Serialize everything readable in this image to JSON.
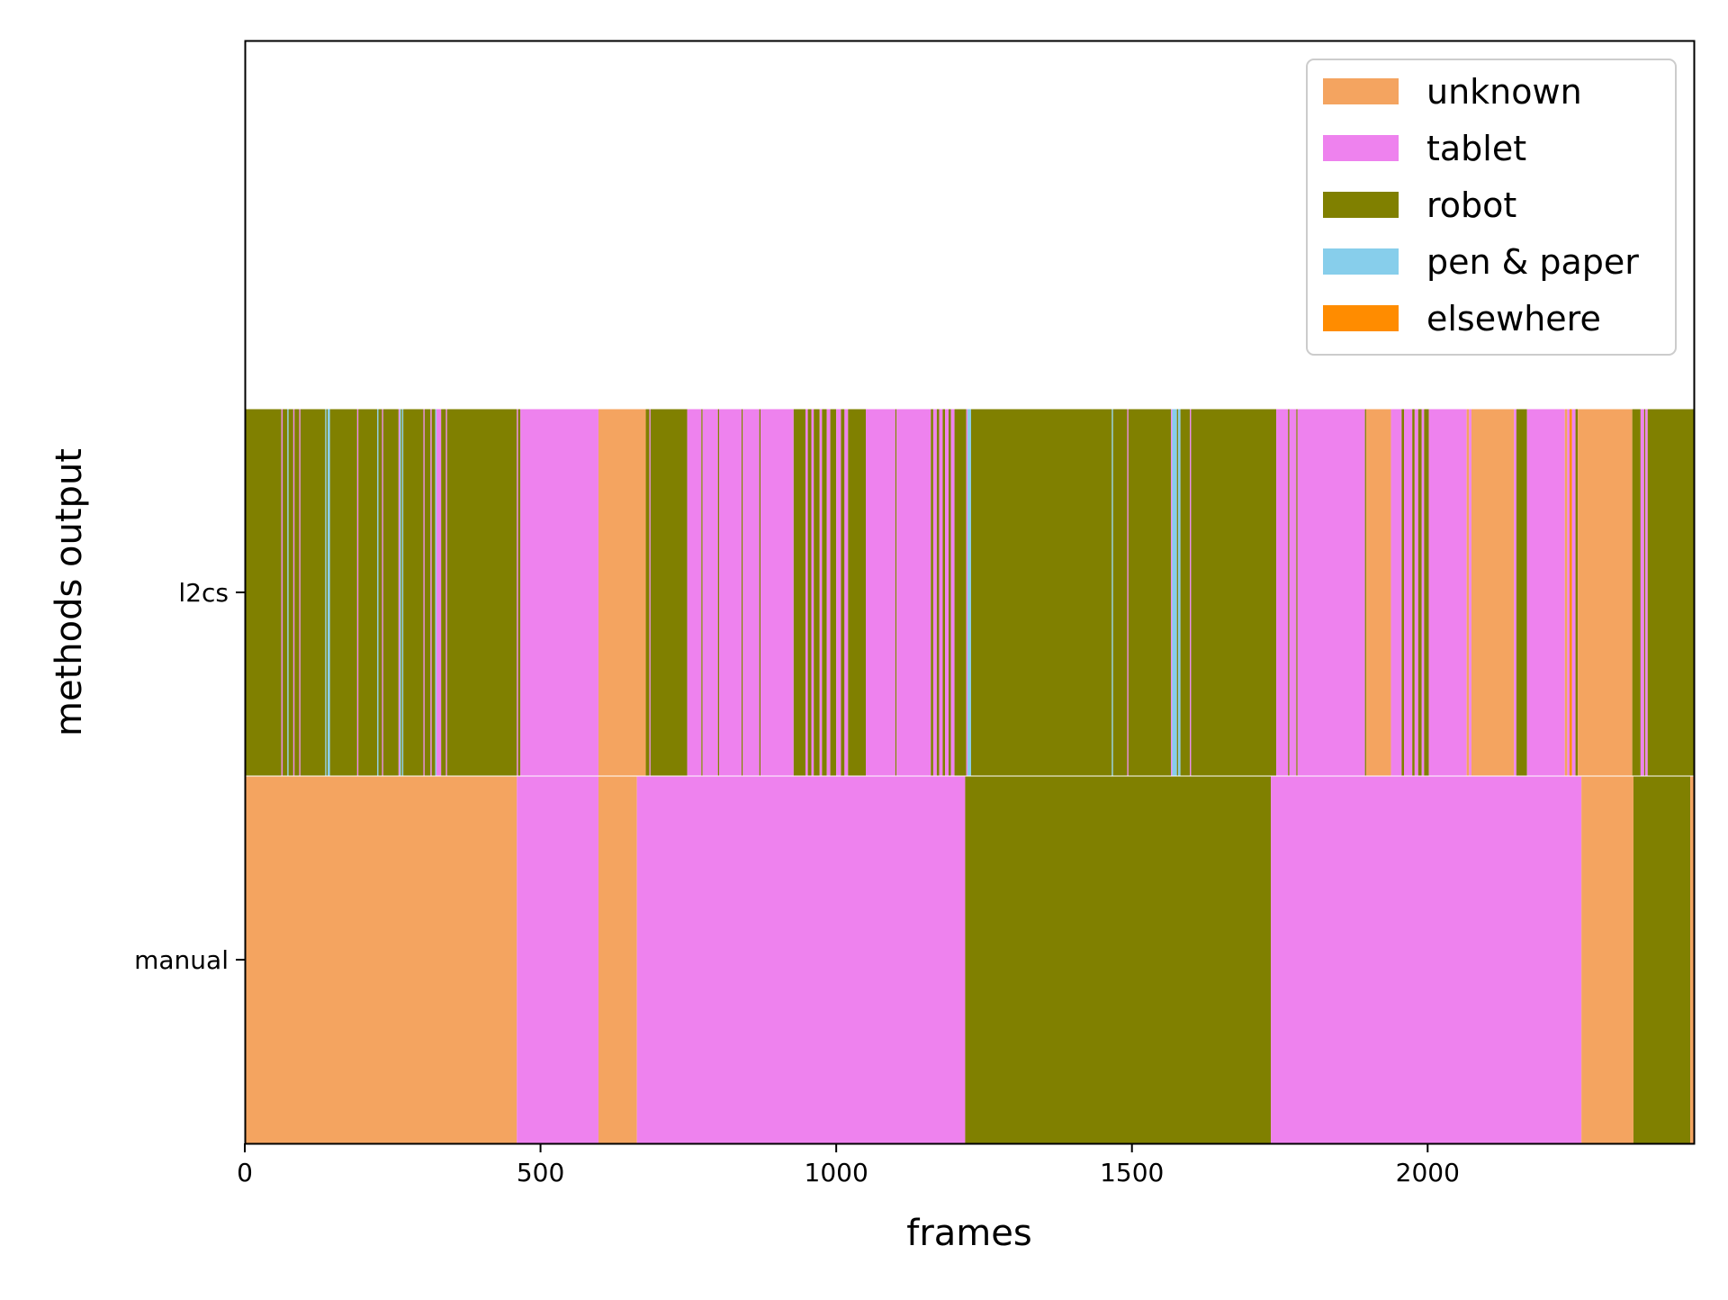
{
  "chart_data": {
    "type": "bar",
    "orientation": "horizontal-stacked-timeline",
    "xlabel": "frames",
    "ylabel": "methods output",
    "xlim": [
      0,
      2450
    ],
    "xticks": [
      0,
      500,
      1000,
      1500,
      2000
    ],
    "rows": [
      "manual",
      "l2cs"
    ],
    "grid": false,
    "legend_position": "top-right",
    "categories": [
      {
        "name": "unknown",
        "color": "#F4A460"
      },
      {
        "name": "tablet",
        "color": "#EE82EE"
      },
      {
        "name": "robot",
        "color": "#808000"
      },
      {
        "name": "pen & paper",
        "color": "#87CEEB"
      },
      {
        "name": "elsewhere",
        "color": "#FF8C00"
      }
    ],
    "series": [
      {
        "name": "manual",
        "segments": [
          {
            "start": 0,
            "end": 460,
            "label": "unknown"
          },
          {
            "start": 460,
            "end": 598,
            "label": "tablet"
          },
          {
            "start": 598,
            "end": 663,
            "label": "unknown"
          },
          {
            "start": 663,
            "end": 1218,
            "label": "tablet"
          },
          {
            "start": 1218,
            "end": 1735,
            "label": "robot"
          },
          {
            "start": 1735,
            "end": 2260,
            "label": "tablet"
          },
          {
            "start": 2260,
            "end": 2348,
            "label": "unknown"
          },
          {
            "start": 2348,
            "end": 2444,
            "label": "robot"
          },
          {
            "start": 2444,
            "end": 2450,
            "label": "unknown"
          }
        ]
      },
      {
        "name": "l2cs",
        "segments": [
          {
            "start": 0,
            "end": 62,
            "label": "robot"
          },
          {
            "start": 62,
            "end": 64,
            "label": "tablet"
          },
          {
            "start": 64,
            "end": 72,
            "label": "robot"
          },
          {
            "start": 72,
            "end": 74,
            "label": "pen & paper"
          },
          {
            "start": 74,
            "end": 82,
            "label": "robot"
          },
          {
            "start": 82,
            "end": 84,
            "label": "tablet"
          },
          {
            "start": 84,
            "end": 92,
            "label": "robot"
          },
          {
            "start": 92,
            "end": 94,
            "label": "tablet"
          },
          {
            "start": 94,
            "end": 136,
            "label": "robot"
          },
          {
            "start": 136,
            "end": 138,
            "label": "pen & paper"
          },
          {
            "start": 138,
            "end": 140,
            "label": "robot"
          },
          {
            "start": 140,
            "end": 144,
            "label": "pen & paper"
          },
          {
            "start": 144,
            "end": 190,
            "label": "robot"
          },
          {
            "start": 190,
            "end": 192,
            "label": "tablet"
          },
          {
            "start": 192,
            "end": 224,
            "label": "robot"
          },
          {
            "start": 224,
            "end": 226,
            "label": "pen & paper"
          },
          {
            "start": 226,
            "end": 232,
            "label": "robot"
          },
          {
            "start": 232,
            "end": 234,
            "label": "tablet"
          },
          {
            "start": 234,
            "end": 260,
            "label": "robot"
          },
          {
            "start": 260,
            "end": 262,
            "label": "tablet"
          },
          {
            "start": 262,
            "end": 264,
            "label": "pen & paper"
          },
          {
            "start": 264,
            "end": 266,
            "label": "robot"
          },
          {
            "start": 266,
            "end": 268,
            "label": "pen & paper"
          },
          {
            "start": 268,
            "end": 302,
            "label": "robot"
          },
          {
            "start": 302,
            "end": 304,
            "label": "tablet"
          },
          {
            "start": 304,
            "end": 314,
            "label": "robot"
          },
          {
            "start": 314,
            "end": 316,
            "label": "tablet"
          },
          {
            "start": 316,
            "end": 322,
            "label": "robot"
          },
          {
            "start": 322,
            "end": 324,
            "label": "pen & paper"
          },
          {
            "start": 324,
            "end": 332,
            "label": "tablet"
          },
          {
            "start": 332,
            "end": 340,
            "label": "robot"
          },
          {
            "start": 340,
            "end": 342,
            "label": "tablet"
          },
          {
            "start": 342,
            "end": 460,
            "label": "robot"
          },
          {
            "start": 460,
            "end": 462,
            "label": "tablet"
          },
          {
            "start": 462,
            "end": 466,
            "label": "robot"
          },
          {
            "start": 466,
            "end": 598,
            "label": "tablet"
          },
          {
            "start": 598,
            "end": 678,
            "label": "unknown"
          },
          {
            "start": 678,
            "end": 684,
            "label": "robot"
          },
          {
            "start": 684,
            "end": 686,
            "label": "tablet"
          },
          {
            "start": 686,
            "end": 748,
            "label": "robot"
          },
          {
            "start": 748,
            "end": 772,
            "label": "tablet"
          },
          {
            "start": 772,
            "end": 774,
            "label": "robot"
          },
          {
            "start": 774,
            "end": 800,
            "label": "tablet"
          },
          {
            "start": 800,
            "end": 802,
            "label": "robot"
          },
          {
            "start": 802,
            "end": 840,
            "label": "tablet"
          },
          {
            "start": 840,
            "end": 842,
            "label": "robot"
          },
          {
            "start": 842,
            "end": 870,
            "label": "tablet"
          },
          {
            "start": 870,
            "end": 872,
            "label": "robot"
          },
          {
            "start": 872,
            "end": 928,
            "label": "tablet"
          },
          {
            "start": 928,
            "end": 948,
            "label": "robot"
          },
          {
            "start": 948,
            "end": 952,
            "label": "tablet"
          },
          {
            "start": 952,
            "end": 958,
            "label": "robot"
          },
          {
            "start": 958,
            "end": 962,
            "label": "tablet"
          },
          {
            "start": 962,
            "end": 972,
            "label": "robot"
          },
          {
            "start": 972,
            "end": 976,
            "label": "tablet"
          },
          {
            "start": 976,
            "end": 984,
            "label": "robot"
          },
          {
            "start": 984,
            "end": 990,
            "label": "tablet"
          },
          {
            "start": 990,
            "end": 1000,
            "label": "robot"
          },
          {
            "start": 1000,
            "end": 1008,
            "label": "tablet"
          },
          {
            "start": 1008,
            "end": 1014,
            "label": "robot"
          },
          {
            "start": 1014,
            "end": 1020,
            "label": "tablet"
          },
          {
            "start": 1020,
            "end": 1050,
            "label": "robot"
          },
          {
            "start": 1050,
            "end": 1100,
            "label": "tablet"
          },
          {
            "start": 1100,
            "end": 1102,
            "label": "robot"
          },
          {
            "start": 1102,
            "end": 1160,
            "label": "tablet"
          },
          {
            "start": 1160,
            "end": 1164,
            "label": "robot"
          },
          {
            "start": 1164,
            "end": 1170,
            "label": "tablet"
          },
          {
            "start": 1170,
            "end": 1174,
            "label": "robot"
          },
          {
            "start": 1174,
            "end": 1180,
            "label": "tablet"
          },
          {
            "start": 1180,
            "end": 1184,
            "label": "robot"
          },
          {
            "start": 1184,
            "end": 1190,
            "label": "tablet"
          },
          {
            "start": 1190,
            "end": 1194,
            "label": "robot"
          },
          {
            "start": 1194,
            "end": 1200,
            "label": "tablet"
          },
          {
            "start": 1200,
            "end": 1220,
            "label": "robot"
          },
          {
            "start": 1220,
            "end": 1222,
            "label": "tablet"
          },
          {
            "start": 1222,
            "end": 1228,
            "label": "pen & paper"
          },
          {
            "start": 1228,
            "end": 1466,
            "label": "robot"
          },
          {
            "start": 1466,
            "end": 1468,
            "label": "pen & paper"
          },
          {
            "start": 1468,
            "end": 1492,
            "label": "robot"
          },
          {
            "start": 1492,
            "end": 1494,
            "label": "tablet"
          },
          {
            "start": 1494,
            "end": 1566,
            "label": "robot"
          },
          {
            "start": 1566,
            "end": 1568,
            "label": "tablet"
          },
          {
            "start": 1568,
            "end": 1576,
            "label": "pen & paper"
          },
          {
            "start": 1576,
            "end": 1578,
            "label": "robot"
          },
          {
            "start": 1578,
            "end": 1582,
            "label": "pen & paper"
          },
          {
            "start": 1582,
            "end": 1598,
            "label": "robot"
          },
          {
            "start": 1598,
            "end": 1600,
            "label": "tablet"
          },
          {
            "start": 1600,
            "end": 1744,
            "label": "robot"
          },
          {
            "start": 1744,
            "end": 1764,
            "label": "tablet"
          },
          {
            "start": 1764,
            "end": 1766,
            "label": "robot"
          },
          {
            "start": 1766,
            "end": 1778,
            "label": "tablet"
          },
          {
            "start": 1778,
            "end": 1780,
            "label": "robot"
          },
          {
            "start": 1780,
            "end": 1894,
            "label": "tablet"
          },
          {
            "start": 1894,
            "end": 1896,
            "label": "robot"
          },
          {
            "start": 1896,
            "end": 1938,
            "label": "unknown"
          },
          {
            "start": 1938,
            "end": 1956,
            "label": "tablet"
          },
          {
            "start": 1956,
            "end": 1960,
            "label": "robot"
          },
          {
            "start": 1960,
            "end": 1974,
            "label": "tablet"
          },
          {
            "start": 1974,
            "end": 1978,
            "label": "robot"
          },
          {
            "start": 1978,
            "end": 1984,
            "label": "tablet"
          },
          {
            "start": 1984,
            "end": 1990,
            "label": "robot"
          },
          {
            "start": 1990,
            "end": 1994,
            "label": "tablet"
          },
          {
            "start": 1994,
            "end": 2002,
            "label": "robot"
          },
          {
            "start": 2002,
            "end": 2066,
            "label": "tablet"
          },
          {
            "start": 2066,
            "end": 2070,
            "label": "unknown"
          },
          {
            "start": 2070,
            "end": 2074,
            "label": "tablet"
          },
          {
            "start": 2074,
            "end": 2146,
            "label": "unknown"
          },
          {
            "start": 2146,
            "end": 2150,
            "label": "tablet"
          },
          {
            "start": 2150,
            "end": 2168,
            "label": "robot"
          },
          {
            "start": 2168,
            "end": 2232,
            "label": "tablet"
          },
          {
            "start": 2232,
            "end": 2236,
            "label": "unknown"
          },
          {
            "start": 2236,
            "end": 2240,
            "label": "tablet"
          },
          {
            "start": 2240,
            "end": 2244,
            "label": "elsewhere"
          },
          {
            "start": 2244,
            "end": 2250,
            "label": "tablet"
          },
          {
            "start": 2250,
            "end": 2254,
            "label": "robot"
          },
          {
            "start": 2254,
            "end": 2346,
            "label": "unknown"
          },
          {
            "start": 2346,
            "end": 2360,
            "label": "robot"
          },
          {
            "start": 2360,
            "end": 2366,
            "label": "tablet"
          },
          {
            "start": 2366,
            "end": 2368,
            "label": "robot"
          },
          {
            "start": 2368,
            "end": 2372,
            "label": "tablet"
          },
          {
            "start": 2372,
            "end": 2450,
            "label": "robot"
          }
        ]
      }
    ]
  }
}
